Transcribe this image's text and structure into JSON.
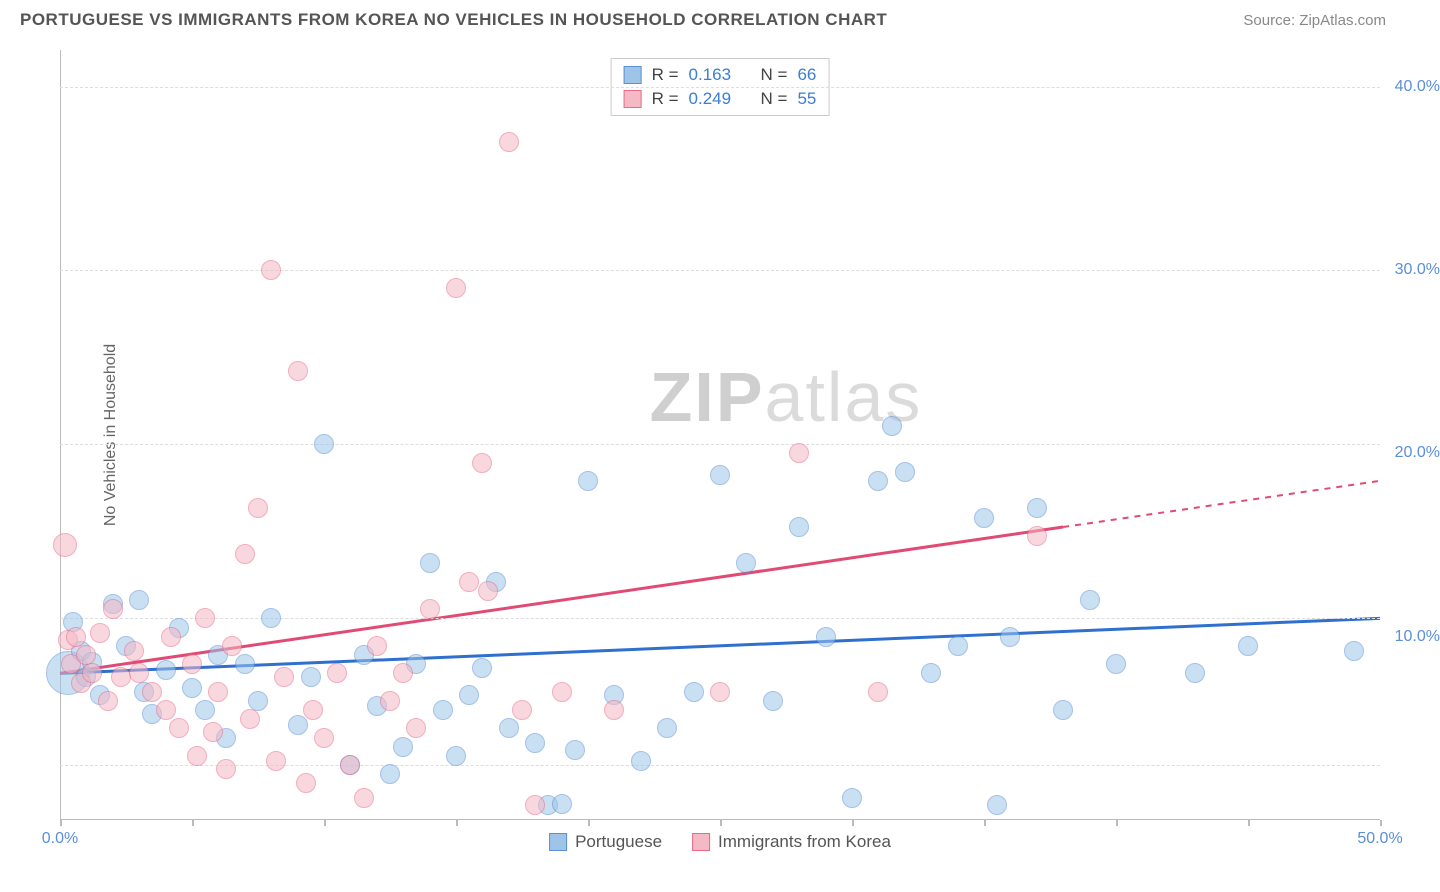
{
  "title": "PORTUGUESE VS IMMIGRANTS FROM KOREA NO VEHICLES IN HOUSEHOLD CORRELATION CHART",
  "source_label": "Source: ",
  "source_name": "ZipAtlas.com",
  "y_axis_label": "No Vehicles in Household",
  "watermark_a": "ZIP",
  "watermark_b": "atlas",
  "chart": {
    "type": "scatter",
    "xlim": [
      0,
      50
    ],
    "ylim": [
      0,
      42
    ],
    "x_ticks": [
      0,
      5,
      10,
      15,
      20,
      25,
      30,
      35,
      40,
      45,
      50
    ],
    "x_tick_labels_shown": {
      "0": "0.0%",
      "50": "50.0%"
    },
    "y_ticks": [
      10,
      20,
      30,
      40
    ],
    "y_tick_labels": {
      "10": "10.0%",
      "20": "20.0%",
      "30": "30.0%",
      "40": "40.0%"
    },
    "y_gridlines": [
      3,
      11,
      20.5,
      30,
      40
    ],
    "background_color": "#ffffff",
    "grid_color": "#dddddd",
    "axis_color": "#bbbbbb",
    "series": [
      {
        "name": "Portuguese",
        "fill": "#9ec5e8",
        "stroke": "#5b8fd6",
        "fill_opacity": 0.55,
        "line_color": "#2f6fd0",
        "line": {
          "x1": 0,
          "y1": 8.0,
          "x2": 50,
          "y2": 11.0,
          "dash_from_x": 50
        },
        "R": "0.163",
        "N": "66",
        "points": [
          [
            0.3,
            8,
            22
          ],
          [
            0.5,
            10.8,
            10
          ],
          [
            0.8,
            9.2,
            10
          ],
          [
            1,
            7.8,
            10
          ],
          [
            1.2,
            8.6,
            10
          ],
          [
            1.5,
            6.8,
            10
          ],
          [
            2,
            11.8,
            10
          ],
          [
            2.5,
            9.5,
            10
          ],
          [
            3,
            12,
            10
          ],
          [
            3.2,
            7,
            10
          ],
          [
            3.5,
            5.8,
            10
          ],
          [
            4,
            8.2,
            10
          ],
          [
            4.5,
            10.5,
            10
          ],
          [
            5,
            7.2,
            10
          ],
          [
            5.5,
            6,
            10
          ],
          [
            6,
            9,
            10
          ],
          [
            6.3,
            4.5,
            10
          ],
          [
            7,
            8.5,
            10
          ],
          [
            7.5,
            6.5,
            10
          ],
          [
            8,
            11,
            10
          ],
          [
            9,
            5.2,
            10
          ],
          [
            9.5,
            7.8,
            10
          ],
          [
            10,
            20.5,
            10
          ],
          [
            11,
            3,
            10
          ],
          [
            11.5,
            9,
            10
          ],
          [
            12,
            6.2,
            10
          ],
          [
            12.5,
            2.5,
            10
          ],
          [
            13,
            4,
            10
          ],
          [
            13.5,
            8.5,
            10
          ],
          [
            14,
            14,
            10
          ],
          [
            14.5,
            6,
            10
          ],
          [
            15,
            3.5,
            10
          ],
          [
            15.5,
            6.8,
            10
          ],
          [
            16,
            8.3,
            10
          ],
          [
            16.5,
            13,
            10
          ],
          [
            17,
            5,
            10
          ],
          [
            18,
            4.2,
            10
          ],
          [
            18.5,
            0.8,
            10
          ],
          [
            19,
            0.9,
            10
          ],
          [
            19.5,
            3.8,
            10
          ],
          [
            20,
            18.5,
            10
          ],
          [
            21,
            6.8,
            10
          ],
          [
            22,
            3.2,
            10
          ],
          [
            23,
            5,
            10
          ],
          [
            24,
            7,
            10
          ],
          [
            25,
            18.8,
            10
          ],
          [
            26,
            14,
            10
          ],
          [
            27,
            6.5,
            10
          ],
          [
            28,
            16,
            10
          ],
          [
            29,
            10,
            10
          ],
          [
            30,
            1.2,
            10
          ],
          [
            31,
            18.5,
            10
          ],
          [
            31.5,
            21.5,
            10
          ],
          [
            32,
            19,
            10
          ],
          [
            33,
            8,
            10
          ],
          [
            34,
            9.5,
            10
          ],
          [
            35,
            16.5,
            10
          ],
          [
            35.5,
            0.8,
            10
          ],
          [
            36,
            10,
            10
          ],
          [
            37,
            17,
            10
          ],
          [
            38,
            6,
            10
          ],
          [
            39,
            12,
            10
          ],
          [
            40,
            8.5,
            10
          ],
          [
            43,
            8,
            10
          ],
          [
            45,
            9.5,
            10
          ],
          [
            49,
            9.2,
            10
          ]
        ]
      },
      {
        "name": "Immigrants from Korea",
        "fill": "#f5b8c5",
        "stroke": "#e86b8a",
        "fill_opacity": 0.55,
        "line_color": "#e04a73",
        "line": {
          "x1": 0,
          "y1": 8.0,
          "x2": 50,
          "y2": 18.5,
          "dash_from_x": 38
        },
        "R": "0.249",
        "N": "55",
        "points": [
          [
            0.2,
            15,
            12
          ],
          [
            0.3,
            9.8,
            10
          ],
          [
            0.4,
            8.5,
            10
          ],
          [
            0.6,
            10,
            10
          ],
          [
            0.8,
            7.5,
            10
          ],
          [
            1,
            9,
            10
          ],
          [
            1.2,
            8,
            10
          ],
          [
            1.5,
            10.2,
            10
          ],
          [
            1.8,
            6.5,
            10
          ],
          [
            2,
            11.5,
            10
          ],
          [
            2.3,
            7.8,
            10
          ],
          [
            2.8,
            9.2,
            10
          ],
          [
            3,
            8,
            10
          ],
          [
            3.5,
            7,
            10
          ],
          [
            4,
            6,
            10
          ],
          [
            4.2,
            10,
            10
          ],
          [
            4.5,
            5,
            10
          ],
          [
            5,
            8.5,
            10
          ],
          [
            5.2,
            3.5,
            10
          ],
          [
            5.5,
            11,
            10
          ],
          [
            5.8,
            4.8,
            10
          ],
          [
            6,
            7,
            10
          ],
          [
            6.3,
            2.8,
            10
          ],
          [
            6.5,
            9.5,
            10
          ],
          [
            7,
            14.5,
            10
          ],
          [
            7.2,
            5.5,
            10
          ],
          [
            7.5,
            17,
            10
          ],
          [
            8,
            30,
            10
          ],
          [
            8.2,
            3.2,
            10
          ],
          [
            8.5,
            7.8,
            10
          ],
          [
            9,
            24.5,
            10
          ],
          [
            9.3,
            2,
            10
          ],
          [
            9.6,
            6,
            10
          ],
          [
            10,
            4.5,
            10
          ],
          [
            10.5,
            8,
            10
          ],
          [
            11,
            3,
            10
          ],
          [
            11.5,
            1.2,
            10
          ],
          [
            12,
            9.5,
            10
          ],
          [
            12.5,
            6.5,
            10
          ],
          [
            13,
            8,
            10
          ],
          [
            13.5,
            5,
            10
          ],
          [
            14,
            11.5,
            10
          ],
          [
            15,
            29,
            10
          ],
          [
            15.5,
            13,
            10
          ],
          [
            16,
            19.5,
            10
          ],
          [
            16.2,
            12.5,
            10
          ],
          [
            17,
            37,
            10
          ],
          [
            17.5,
            6,
            10
          ],
          [
            18,
            0.8,
            10
          ],
          [
            19,
            7,
            10
          ],
          [
            21,
            6,
            10
          ],
          [
            25,
            7,
            10
          ],
          [
            28,
            20,
            10
          ],
          [
            31,
            7,
            10
          ],
          [
            37,
            15.5,
            10
          ]
        ]
      }
    ],
    "legend_top": {
      "R_label": "R =",
      "N_label": "N ="
    },
    "legend_bottom": [
      {
        "label": "Portuguese",
        "fill": "#9ec5e8",
        "stroke": "#5b8fd6"
      },
      {
        "label": "Immigrants from Korea",
        "fill": "#f5b8c5",
        "stroke": "#e86b8a"
      }
    ]
  }
}
